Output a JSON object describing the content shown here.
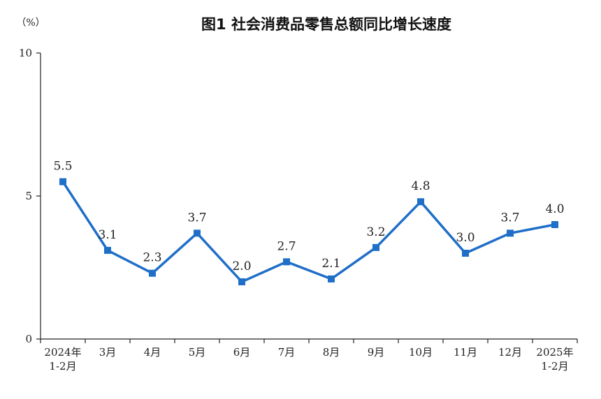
{
  "chart_data": {
    "type": "line",
    "title": "图1  社会消费品零售总额同比增长速度",
    "ylabel": "（%）",
    "xlabel": "",
    "ylim": [
      0,
      10
    ],
    "yticks": [
      "0",
      "5",
      "10"
    ],
    "categories": [
      [
        "2024年",
        "1-2月"
      ],
      [
        "3月"
      ],
      [
        "4月"
      ],
      [
        "5月"
      ],
      [
        "6月"
      ],
      [
        "7月"
      ],
      [
        "8月"
      ],
      [
        "9月"
      ],
      [
        "10月"
      ],
      [
        "11月"
      ],
      [
        "12月"
      ],
      [
        "2025年",
        "1-2月"
      ]
    ],
    "values": [
      5.5,
      3.1,
      2.3,
      3.7,
      2.0,
      2.7,
      2.1,
      3.2,
      4.8,
      3.0,
      3.7,
      4.0
    ],
    "data_labels": [
      "5.5",
      "3.1",
      "2.3",
      "3.7",
      "2.0",
      "2.7",
      "2.1",
      "3.2",
      "4.8",
      "3.0",
      "3.7",
      "4.0"
    ],
    "color": "#1f6ec8",
    "grid": false,
    "legend": "none"
  }
}
